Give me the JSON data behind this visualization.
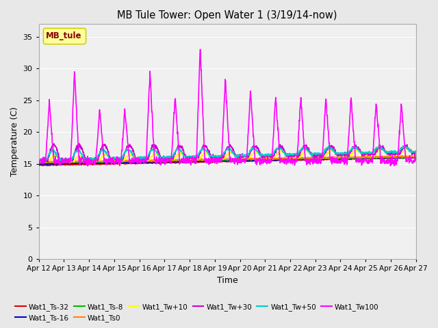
{
  "title": "MB Tule Tower: Open Water 1 (3/19/14-now)",
  "xlabel": "Time",
  "ylabel": "Temperature (C)",
  "ylim": [
    0,
    37
  ],
  "yticks": [
    0,
    5,
    10,
    15,
    20,
    25,
    30,
    35
  ],
  "xlim_days": [
    0,
    15
  ],
  "x_tick_labels": [
    "Apr 12",
    "Apr 13",
    "Apr 14",
    "Apr 15",
    "Apr 16",
    "Apr 17",
    "Apr 18",
    "Apr 19",
    "Apr 20",
    "Apr 21",
    "Apr 22",
    "Apr 23",
    "Apr 24",
    "Apr 25",
    "Apr 26",
    "Apr 27"
  ],
  "fig_bg_color": "#e8e8e8",
  "plot_bg_color": "#f0f0f0",
  "legend_label": "MB_tule",
  "legend_face": "#ffff99",
  "legend_edge": "#cccc00",
  "legend_text_color": "#880000",
  "series_colors": {
    "Wat1_Ts-32": "#dd0000",
    "Wat1_Ts-16": "#0000cc",
    "Wat1_Ts-8": "#00bb00",
    "Wat1_Ts0": "#ff8800",
    "Wat1_Tw+10": "#ffff00",
    "Wat1_Tw+30": "#cc00cc",
    "Wat1_Tw+50": "#00cccc",
    "Wat1_Tw100": "#ff00ff"
  }
}
